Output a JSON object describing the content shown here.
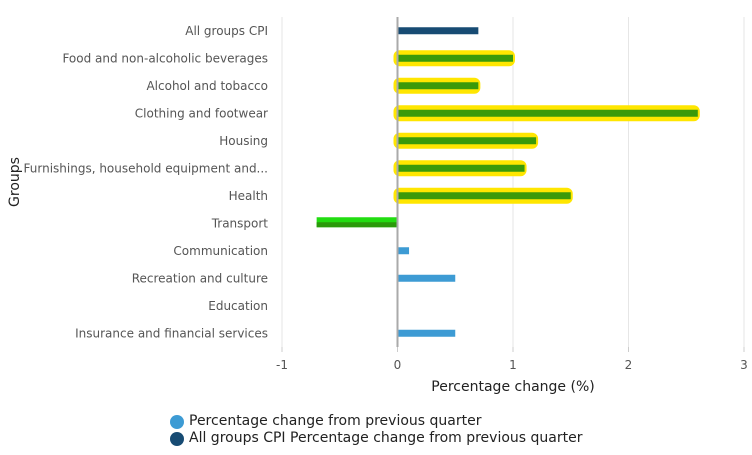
{
  "chart_data": {
    "type": "bar",
    "orientation": "horizontal",
    "title": "",
    "xlabel": "Percentage change (%)",
    "ylabel": "Groups",
    "xlim": [
      -1,
      3
    ],
    "xticks": [
      "-1",
      "0",
      "1",
      "2",
      "3"
    ],
    "grid": true,
    "legend_position": "bottom-center",
    "categories": [
      "All groups CPI",
      "Food and non-alcoholic beverages",
      "Alcohol and tobacco",
      "Clothing and footwear",
      "Housing",
      "Furnishings, household equipment and...",
      "Health",
      "Transport",
      "Communication",
      "Recreation and culture",
      "Education",
      "Insurance and financial services"
    ],
    "series": [
      {
        "name": "Percentage change from previous quarter",
        "color": "#3d9bd4",
        "values": [
          null,
          1.0,
          0.7,
          2.6,
          1.2,
          1.1,
          1.5,
          -0.7,
          0.1,
          0.5,
          0.0,
          0.5
        ]
      },
      {
        "name": "All groups CPI Percentage change from previous quarter",
        "color": "#174b73",
        "values": [
          0.7,
          null,
          null,
          null,
          null,
          null,
          null,
          null,
          null,
          null,
          null,
          null
        ]
      }
    ],
    "annotations": {
      "highlighted_categories": [
        "Food and non-alcoholic beverages",
        "Alcohol and tobacco",
        "Clothing and footwear",
        "Housing",
        "Furnishings, household equipment and...",
        "Health"
      ],
      "highlight_color": "#ffe600",
      "highlight_bar_color": "#3a9a0a",
      "negative_highlight_categories": [
        "Transport"
      ],
      "negative_highlight_color": "#22dd11"
    }
  },
  "legend": [
    {
      "label": "Percentage change from previous quarter",
      "color": "#3d9bd4"
    },
    {
      "label": "All groups CPI Percentage change from previous quarter",
      "color": "#174b73"
    }
  ]
}
